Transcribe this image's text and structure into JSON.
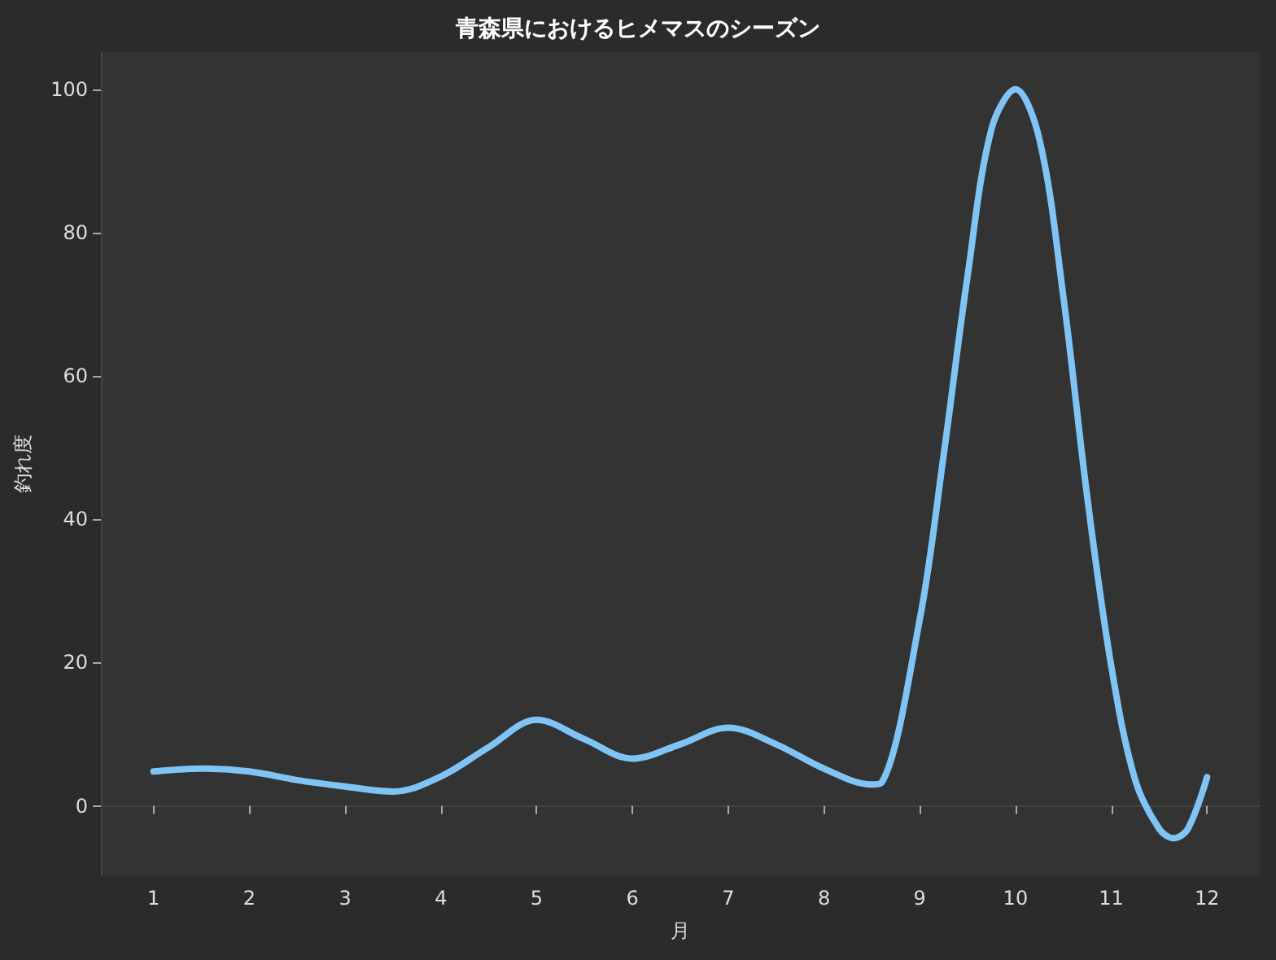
{
  "chart_data": {
    "type": "line",
    "title": "青森県におけるヒメマスのシーズン",
    "xlabel": "月",
    "ylabel": "釣れ度",
    "x": [
      1,
      1.5,
      2,
      2.5,
      3,
      3.5,
      4,
      4.5,
      5,
      5.5,
      6,
      6.5,
      7,
      7.5,
      8,
      8.5,
      8.6,
      9,
      9.25,
      9.5,
      9.75,
      10,
      10.25,
      10.5,
      10.75,
      11,
      11.25,
      11.5,
      11.65,
      11.8,
      12
    ],
    "series": [
      {
        "color": "#7fc4f5",
        "values": [
          4.8,
          5.2,
          4.8,
          3.6,
          2.7,
          2.0,
          4.1,
          8.2,
          12,
          9.3,
          6.6,
          8.6,
          10.9,
          8.6,
          5.2,
          3.0,
          3.2,
          26,
          49,
          74,
          94.5,
          100,
          93,
          71,
          43,
          19.5,
          3.6,
          -3.2,
          -4.5,
          -3.2,
          4
        ]
      }
    ],
    "xlim": [
      0.45,
      12.55
    ],
    "ylim": [
      -9.7,
      105.2
    ],
    "xticks": [
      1,
      2,
      3,
      4,
      5,
      6,
      7,
      8,
      9,
      10,
      11,
      12
    ],
    "yticks": [
      0,
      20,
      40,
      60,
      80,
      100
    ],
    "marker": "none",
    "line_style": "solid"
  }
}
